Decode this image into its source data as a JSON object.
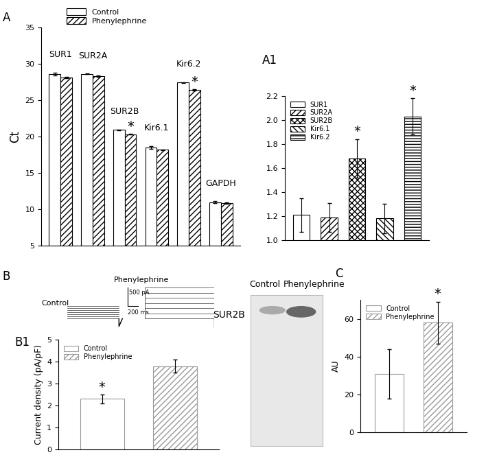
{
  "chart_data": [
    {
      "panel_label": "A",
      "type": "bar",
      "y_label": "Ct",
      "categories": [
        "SUR1",
        "SUR2A",
        "SUR2B",
        "Kir6.1",
        "Kir6.2",
        "GAPDH"
      ],
      "series": [
        {
          "name": "Control",
          "color": "#ffffff",
          "values": [
            28.6,
            28.6,
            20.9,
            18.5,
            27.4,
            11.0
          ],
          "errors": [
            0.2,
            0.05,
            0.05,
            0.2,
            0.08,
            0.15
          ]
        },
        {
          "name": "Phenylephrine",
          "color": "#ffffff",
          "values": [
            28.1,
            28.3,
            20.3,
            18.2,
            26.4,
            10.9
          ],
          "errors": [
            0.1,
            0.1,
            0.05,
            0.05,
            0.1,
            0.1
          ]
        }
      ],
      "ylim": [
        5,
        35
      ],
      "yticks": [
        5,
        10,
        15,
        20,
        25,
        30,
        35
      ],
      "legend": "upper left",
      "tick_labels": "y",
      "annotations": [
        {
          "text": "*",
          "category": "SUR2B",
          "series": "Phenylephrine"
        },
        {
          "text": "*",
          "category": "Kir6.2",
          "series": "Phenylephrine"
        }
      ]
    },
    {
      "panel_label": "A1",
      "type": "bar",
      "categories": [
        "SUR1",
        "SUR2A",
        "SUR2B",
        "Kir6.1",
        "Kir6.2"
      ],
      "values": [
        1.21,
        1.19,
        1.68,
        1.18,
        2.03
      ],
      "errors": [
        0.14,
        0.12,
        0.16,
        0.12,
        0.15
      ],
      "colors": [
        "#ffffff",
        "#ffffff",
        "#ffffff",
        "#ffffff",
        "#ffffff"
      ],
      "ylim": [
        1.0,
        2.2
      ],
      "yticks": [
        1.0,
        1.2,
        1.4,
        1.6,
        1.8,
        2.0,
        2.2
      ],
      "legend": "upper left",
      "tick_labels": "y",
      "annotations": [
        {
          "text": "*",
          "category": "SUR2B"
        },
        {
          "text": "*",
          "category": "Kir6.2"
        }
      ]
    },
    {
      "panel_label": "B1",
      "type": "bar",
      "y_label": "Current density (pA/pF)",
      "categories": [
        "Control",
        "Phenylephrine"
      ],
      "values": [
        2.3,
        3.8
      ],
      "errors": [
        0.2,
        0.3
      ],
      "colors": [
        "#ffffff",
        "#ffffff"
      ],
      "ylim": [
        0,
        5
      ],
      "yticks": [
        0,
        1,
        2,
        3,
        4,
        5
      ],
      "legend": "upper left",
      "tick_labels": "y",
      "annotations": [
        {
          "text": "*",
          "category": "Control"
        }
      ]
    },
    {
      "panel_label": "C",
      "type": "bar",
      "y_label": "AU",
      "categories": [
        "Control",
        "Phenylephrine"
      ],
      "values": [
        31,
        58
      ],
      "errors": [
        13,
        11
      ],
      "colors": [
        "#ffffff",
        "#ffffff"
      ],
      "ylim": [
        0,
        70
      ],
      "yticks": [
        0,
        20,
        40,
        60
      ],
      "legend": "upper left",
      "tick_labels": "y",
      "annotations": [
        {
          "text": "*",
          "category": "Phenylephrine"
        }
      ]
    }
  ],
  "traces": {
    "panel_label": "B",
    "labels": [
      "Control",
      "Phenylephrine"
    ],
    "scale_bar": [
      "500 pA",
      "200 ms"
    ]
  },
  "blot": {
    "lanes": [
      "Control",
      "Phenylephrine"
    ],
    "band": "SUR2B"
  }
}
